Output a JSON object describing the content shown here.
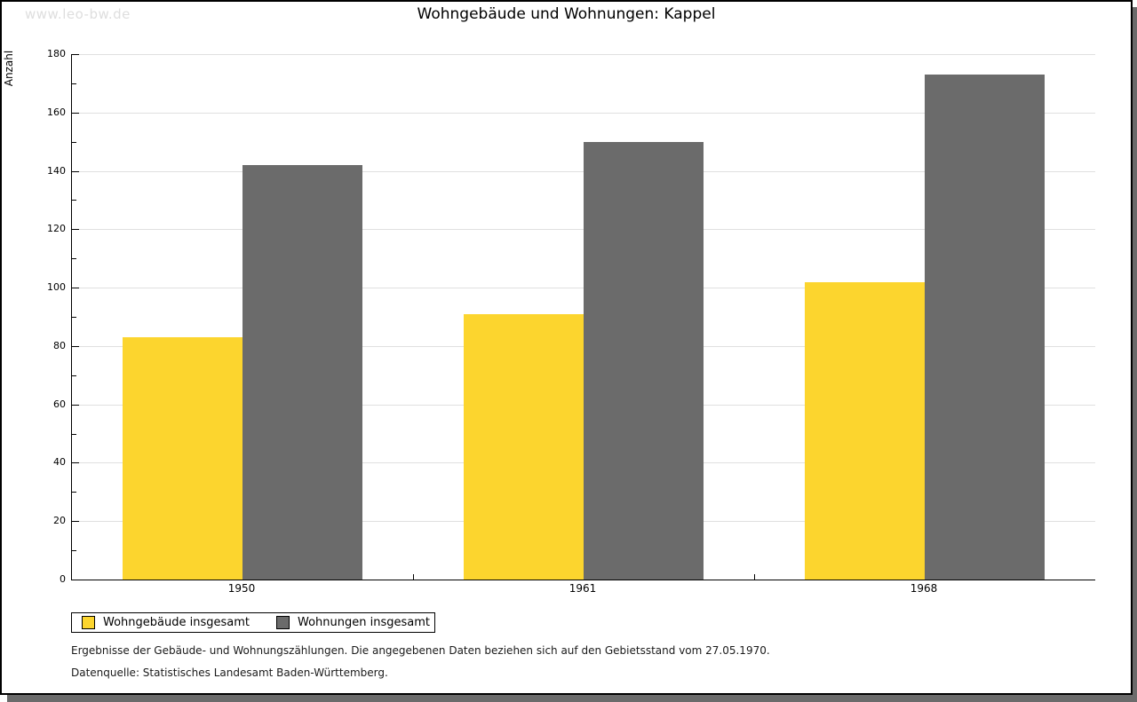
{
  "watermark": "www.leo-bw.de",
  "title": "Wohngebäude und Wohnungen: Kappel",
  "chart_data": {
    "type": "bar",
    "title": "Wohngebäude und Wohnungen: Kappel",
    "xlabel": "",
    "ylabel": "Anzahl",
    "categories": [
      "1950",
      "1961",
      "1968"
    ],
    "series": [
      {
        "name": "Wohngebäude insgesamt",
        "color": "#FCD52E",
        "values": [
          83,
          91,
          102
        ]
      },
      {
        "name": "Wohnungen insgesamt",
        "color": "#6B6B6B",
        "values": [
          142,
          150,
          173
        ]
      }
    ],
    "ylim": [
      0,
      180
    ],
    "ytick_step": 20,
    "minor_tick_step": 10,
    "grid": true,
    "grid_color": "#E0E0E0",
    "legend_position": "bottom-left"
  },
  "colors": {
    "shadow": "#6B6B6B",
    "watermark": "#DEDEDE",
    "axis": "#000000"
  },
  "footnotes": [
    "Ergebnisse der Gebäude- und Wohnungszählungen. Die angegebenen Daten beziehen sich auf den Gebietsstand vom 27.05.1970.",
    "Datenquelle: Statistisches Landesamt Baden-Württemberg."
  ]
}
